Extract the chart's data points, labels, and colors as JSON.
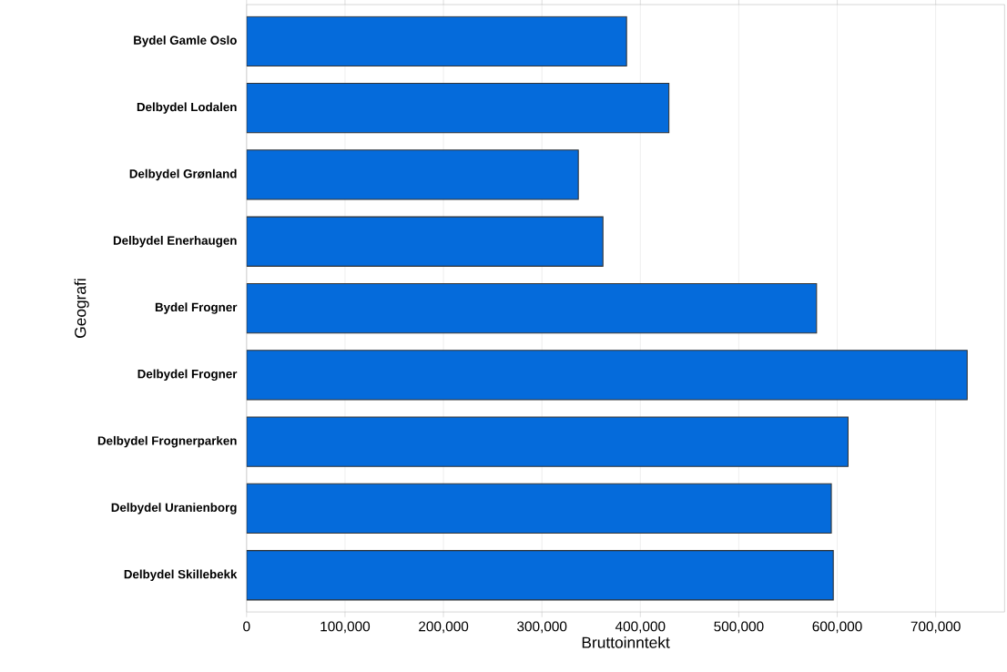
{
  "chart_data": {
    "type": "bar",
    "orientation": "horizontal",
    "xlabel": "Bruttoinntekt",
    "ylabel": "Geografi",
    "categories": [
      "Bydel Gamle Oslo",
      "Delbydel Lodalen",
      "Delbydel Grønland",
      "Delbydel Enerhaugen",
      "Bydel Frogner",
      "Delbydel Frogner",
      "Delbydel Frognerparken",
      "Delbydel Uranienborg",
      "Delbydel Skillebekk"
    ],
    "values": [
      386000,
      429000,
      337000,
      362000,
      579000,
      732000,
      611000,
      594000,
      596000
    ],
    "color": "#056bdb",
    "xlim": [
      0,
      770000
    ],
    "xticks": [
      0,
      {
        "value": 100000,
        "label": "100,000"
      },
      {
        "value": 200000,
        "label": "200,000"
      },
      {
        "value": 300000,
        "label": "300,000"
      },
      {
        "value": 400000,
        "label": "400,000"
      },
      {
        "value": 500000,
        "label": "500,000"
      },
      {
        "value": 600000,
        "label": "600,000"
      },
      {
        "value": 700000,
        "label": "700,000"
      }
    ],
    "grid": "x"
  }
}
